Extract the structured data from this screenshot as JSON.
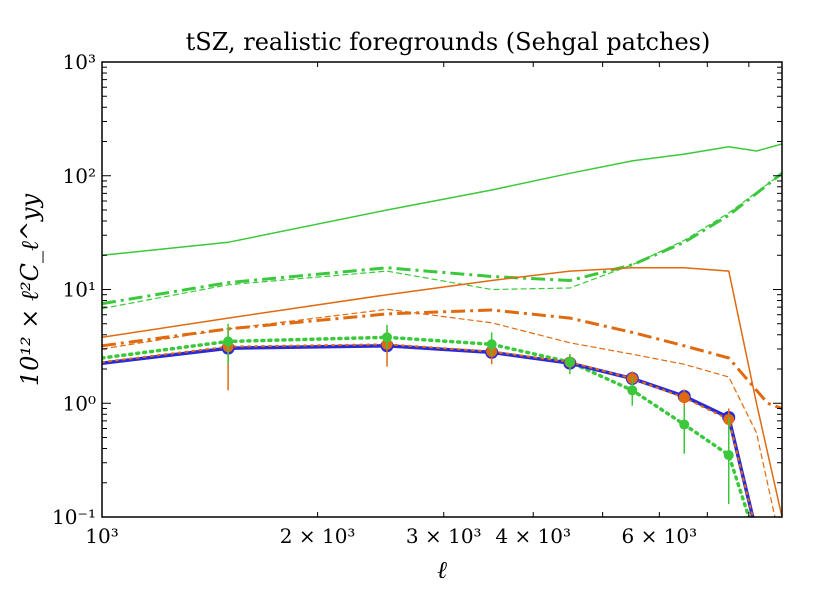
{
  "chart_data": {
    "type": "line",
    "title": "tSZ, realistic foregrounds (Sehgal patches)",
    "xlabel": "ℓ",
    "ylabel": "10¹² × ℓ²C_ℓ^yy",
    "xscale": "log",
    "yscale": "log",
    "xlim": [
      1000,
      8900
    ],
    "ylim": [
      0.1,
      1000
    ],
    "x_ticks": [
      {
        "value": 1000,
        "label": "10³"
      },
      {
        "value": 2000,
        "label": "2 × 10³"
      },
      {
        "value": 3000,
        "label": "3 × 10³"
      },
      {
        "value": 4000,
        "label": "4 × 10³"
      },
      {
        "value": 6000,
        "label": "6 × 10³"
      }
    ],
    "y_ticks": [
      {
        "value": 0.1,
        "label": "10⁻¹"
      },
      {
        "value": 1,
        "label": "10⁰"
      },
      {
        "value": 10,
        "label": "10¹"
      },
      {
        "value": 100,
        "label": "10²"
      },
      {
        "value": 1000,
        "label": "10³"
      }
    ],
    "colors": {
      "blue": "#2a2ad8",
      "orange": "#e06a10",
      "green": "#3cc83c"
    },
    "series": [
      {
        "name": "green-solid",
        "color": "#3cc83c",
        "style": "solid",
        "width": 1.5,
        "x": [
          1000,
          1500,
          2500,
          3500,
          4500,
          5500,
          6500,
          7500,
          8200,
          8900
        ],
        "y": [
          20,
          26,
          50,
          75,
          105,
          135,
          155,
          180,
          165,
          190
        ]
      },
      {
        "name": "green-dashdot-thick",
        "color": "#3cc83c",
        "style": "dashdot",
        "width": 3,
        "x": [
          1000,
          1500,
          2500,
          3500,
          4500,
          5500,
          6500,
          7500,
          8900
        ],
        "y": [
          7.5,
          11.5,
          15.5,
          13.0,
          12.0,
          16.5,
          26,
          45,
          105
        ]
      },
      {
        "name": "green-dashed-thin",
        "color": "#3cc83c",
        "style": "dashed",
        "width": 1.2,
        "x": [
          1000,
          1500,
          2500,
          3500,
          4500,
          5500,
          6500,
          7500,
          8900
        ],
        "y": [
          6.8,
          11.0,
          14.5,
          10.0,
          10.3,
          16.5,
          27,
          47,
          105
        ]
      },
      {
        "name": "orange-solid",
        "color": "#e06a10",
        "style": "solid",
        "width": 1.5,
        "x": [
          1000,
          1500,
          2500,
          3500,
          4500,
          5500,
          6500,
          7500,
          8200,
          8900
        ],
        "y": [
          3.8,
          5.6,
          9.0,
          12.0,
          14.5,
          15.5,
          15.5,
          14.5,
          1.0,
          0.1
        ]
      },
      {
        "name": "orange-dashdot-thick",
        "color": "#e06a10",
        "style": "dashdot",
        "width": 3,
        "x": [
          1000,
          1500,
          2500,
          3500,
          4500,
          5500,
          6500,
          7500,
          8500,
          8900
        ],
        "y": [
          3.2,
          4.5,
          6.1,
          6.6,
          5.6,
          4.2,
          3.2,
          2.5,
          1.0,
          0.9
        ]
      },
      {
        "name": "orange-dashed-thin",
        "color": "#e06a10",
        "style": "dashed",
        "width": 1.2,
        "x": [
          1000,
          1500,
          2500,
          3500,
          4500,
          5500,
          6500,
          7500,
          8200,
          8700
        ],
        "y": [
          3.0,
          4.5,
          6.7,
          5.1,
          3.4,
          2.7,
          2.2,
          1.7,
          0.55,
          0.1
        ]
      },
      {
        "name": "green-dotted",
        "color": "#3cc83c",
        "style": "dotted",
        "width": 3.5,
        "x": [
          1000,
          1500,
          2500,
          3500,
          4500,
          5500,
          6500,
          7500,
          8000
        ],
        "y": [
          2.5,
          3.5,
          3.8,
          3.3,
          2.3,
          1.3,
          0.65,
          0.35,
          0.1
        ]
      },
      {
        "name": "blue-solid",
        "color": "#2a2ad8",
        "style": "solid",
        "width": 3.5,
        "x": [
          1000,
          1500,
          2500,
          3500,
          4500,
          5500,
          6500,
          7500,
          8100
        ],
        "y": [
          2.25,
          3.05,
          3.2,
          2.8,
          2.25,
          1.65,
          1.15,
          0.75,
          0.1
        ]
      },
      {
        "name": "orange-dotted-on-blue",
        "color": "#e06a10",
        "style": "dotted",
        "width": 2,
        "x": [
          1000,
          1500,
          2500,
          3500,
          4500,
          5500,
          6500,
          7500,
          8100
        ],
        "y": [
          2.3,
          3.15,
          3.3,
          2.85,
          2.3,
          1.65,
          1.12,
          0.72,
          0.1
        ]
      }
    ],
    "points": [
      {
        "name": "blue-points",
        "color": "#2a2ad8",
        "radius": 6.5,
        "x": [
          1500,
          2500,
          3500,
          4500,
          5500,
          6500,
          7500
        ],
        "y": [
          3.05,
          3.2,
          2.8,
          2.25,
          1.65,
          1.15,
          0.75
        ]
      },
      {
        "name": "orange-points",
        "color": "#e06a10",
        "radius": 5.5,
        "x": [
          1500,
          2500,
          3500,
          4500,
          5500,
          6500,
          7500
        ],
        "y": [
          3.15,
          3.3,
          2.85,
          2.3,
          1.65,
          1.12,
          0.72
        ],
        "err_low": [
          1.3,
          2.1,
          2.2,
          1.95,
          1.45,
          0.95,
          0.55
        ],
        "err_high": [
          4.6,
          4.5,
          3.6,
          2.7,
          1.9,
          1.32,
          0.9
        ]
      },
      {
        "name": "green-points",
        "color": "#3cc83c",
        "radius": 5,
        "x": [
          1500,
          2500,
          3500,
          4500,
          5500,
          6500,
          7500
        ],
        "y": [
          3.5,
          3.8,
          3.3,
          2.3,
          1.3,
          0.65,
          0.35
        ],
        "err_low": [
          2.2,
          3.0,
          2.6,
          1.8,
          0.95,
          0.36,
          0.13
        ],
        "err_high": [
          5.0,
          4.9,
          4.2,
          2.7,
          1.7,
          0.95,
          0.75
        ]
      }
    ]
  }
}
